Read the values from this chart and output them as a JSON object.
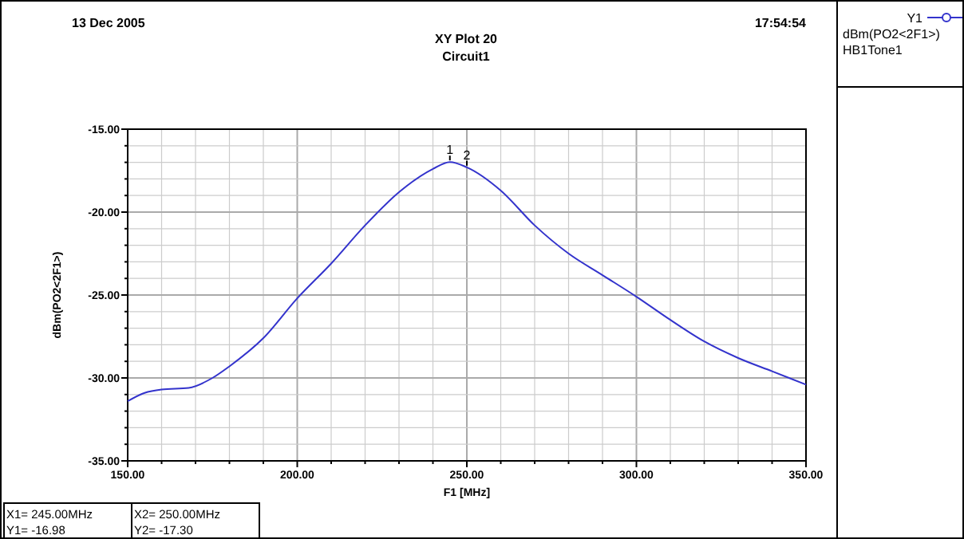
{
  "chart_data": {
    "type": "line",
    "title": "XY Plot 20",
    "subtitle": "Circuit1",
    "xlabel": "F1 [MHz]",
    "ylabel": "dBm(PO2<2F1>)",
    "x": [
      150,
      155,
      160,
      168,
      175,
      180,
      190,
      200,
      210,
      220,
      230,
      240,
      245,
      250,
      260,
      270,
      280,
      290,
      300,
      310,
      320,
      330,
      340,
      350
    ],
    "series": [
      {
        "name": "Y1",
        "color": "#3333cc",
        "values": [
          -31.4,
          -30.9,
          -30.7,
          -30.6,
          -30.0,
          -29.3,
          -27.6,
          -25.2,
          -23.1,
          -20.8,
          -18.8,
          -17.4,
          -16.98,
          -17.3,
          -18.7,
          -20.8,
          -22.5,
          -23.8,
          -25.1,
          -26.5,
          -27.8,
          -28.8,
          -29.6,
          -30.4
        ]
      }
    ],
    "xlim": [
      150,
      350
    ],
    "ylim": [
      -35,
      -15
    ],
    "xticks": [
      {
        "value": 150,
        "label": "150.00"
      },
      {
        "value": 160,
        "label": null
      },
      {
        "value": 170,
        "label": null
      },
      {
        "value": 180,
        "label": null
      },
      {
        "value": 190,
        "label": null
      },
      {
        "value": 200,
        "label": "200.00"
      },
      {
        "value": 210,
        "label": null
      },
      {
        "value": 220,
        "label": null
      },
      {
        "value": 230,
        "label": null
      },
      {
        "value": 240,
        "label": null
      },
      {
        "value": 250,
        "label": "250.00"
      },
      {
        "value": 260,
        "label": null
      },
      {
        "value": 270,
        "label": null
      },
      {
        "value": 280,
        "label": null
      },
      {
        "value": 290,
        "label": null
      },
      {
        "value": 300,
        "label": "300.00"
      },
      {
        "value": 310,
        "label": null
      },
      {
        "value": 320,
        "label": null
      },
      {
        "value": 330,
        "label": null
      },
      {
        "value": 340,
        "label": null
      },
      {
        "value": 350,
        "label": "350.00"
      }
    ],
    "yticks": [
      {
        "value": -35,
        "label": "-35.00"
      },
      {
        "value": -34,
        "label": null
      },
      {
        "value": -33,
        "label": null
      },
      {
        "value": -32,
        "label": null
      },
      {
        "value": -31,
        "label": null
      },
      {
        "value": -30,
        "label": "-30.00"
      },
      {
        "value": -29,
        "label": null
      },
      {
        "value": -28,
        "label": null
      },
      {
        "value": -27,
        "label": null
      },
      {
        "value": -26,
        "label": null
      },
      {
        "value": -25,
        "label": "-25.00"
      },
      {
        "value": -24,
        "label": null
      },
      {
        "value": -23,
        "label": null
      },
      {
        "value": -22,
        "label": null
      },
      {
        "value": -21,
        "label": null
      },
      {
        "value": -20,
        "label": "-20.00"
      },
      {
        "value": -19,
        "label": null
      },
      {
        "value": -18,
        "label": null
      },
      {
        "value": -17,
        "label": null
      },
      {
        "value": -16,
        "label": null
      },
      {
        "value": -15,
        "label": "-15.00"
      }
    ],
    "grid": true,
    "legend": "right",
    "marker": "none",
    "line_style": "solid",
    "annotations": [
      "13 Dec 2005",
      "17:54:54",
      "dBm(PO2<2F1>)",
      "HB1Tone1",
      {
        "text": "1",
        "x": 245,
        "y": -16.98
      },
      {
        "text": "2",
        "x": 250,
        "y": -17.3
      },
      "X1= 245.00MHz",
      "Y1= -16.98",
      "X2= 250.00MHz",
      "Y2= -17.30"
    ]
  }
}
